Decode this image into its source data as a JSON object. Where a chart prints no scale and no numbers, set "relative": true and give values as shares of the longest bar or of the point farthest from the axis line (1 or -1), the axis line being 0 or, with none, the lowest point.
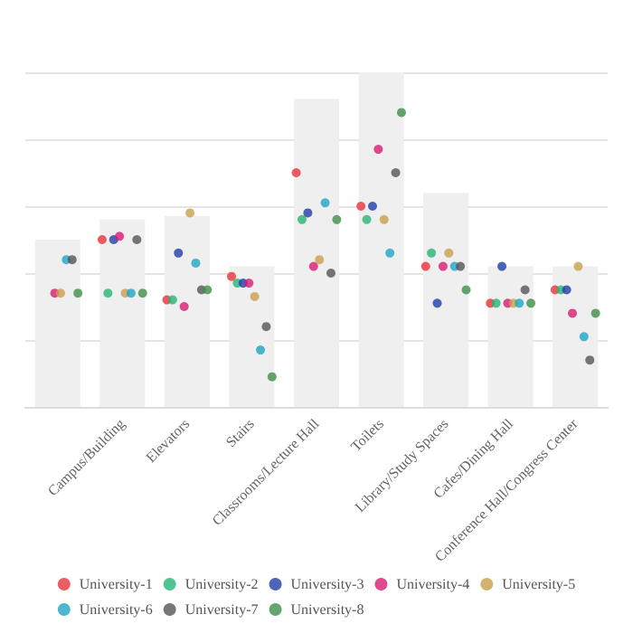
{
  "chart_data": {
    "type": "bar",
    "relative": true,
    "grid": "y",
    "legend": "bottom",
    "marker": "circle",
    "categories": [
      null,
      "Campus/Building",
      "Elevators",
      "Stairs",
      "Classrooms/Lecture Hall",
      "Toilets",
      "Library/Study Spaces",
      "Cafes/Dining Hall",
      "Conference Hall/Congress Center"
    ],
    "series": [
      {
        "color": "#efefef",
        "values": [
          0.5,
          0.56,
          0.57,
          0.42,
          0.92,
          1,
          0.64,
          0.42,
          0.42
        ]
      },
      {
        "type": "scatter",
        "name": "University-1",
        "color": "#e8323c",
        "values": [
          null,
          0.5,
          0.32,
          0.39,
          0.7,
          0.6,
          0.42,
          0.31,
          0.35
        ]
      },
      {
        "type": "scatter",
        "name": "University-2",
        "color": "#27b577",
        "values": [
          null,
          0.34,
          0.32,
          0.37,
          0.56,
          0.56,
          0.46,
          0.31,
          0.35
        ]
      },
      {
        "type": "scatter",
        "name": "University-3",
        "color": "#1f3fa8",
        "values": [
          null,
          0.5,
          0.46,
          0.37,
          0.58,
          0.6,
          0.31,
          0.42,
          0.35
        ]
      },
      {
        "type": "scatter",
        "name": "University-4",
        "color": "#d81b70",
        "values": [
          0.34,
          0.51,
          0.3,
          0.37,
          0.42,
          0.77,
          0.42,
          0.31,
          0.28
        ]
      },
      {
        "type": "scatter",
        "name": "University-5",
        "color": "#c9a04e",
        "values": [
          0.34,
          0.34,
          0.58,
          0.33,
          0.44,
          0.56,
          0.46,
          0.31,
          0.42
        ]
      },
      {
        "type": "scatter",
        "name": "University-6",
        "color": "#1ea5c4",
        "values": [
          0.44,
          0.34,
          0.43,
          0.17,
          0.61,
          0.46,
          0.42,
          0.31,
          0.21
        ]
      },
      {
        "type": "scatter",
        "name": "University-7",
        "color": "#555555",
        "values": [
          0.44,
          0.5,
          0.35,
          0.24,
          0.4,
          0.7,
          0.42,
          0.35,
          0.14
        ]
      },
      {
        "type": "scatter",
        "name": "University-8",
        "color": "#3e8e4a",
        "values": [
          0.34,
          0.34,
          0.35,
          0.09,
          0.56,
          0.88,
          0.35,
          0.31,
          0.28
        ]
      }
    ]
  }
}
